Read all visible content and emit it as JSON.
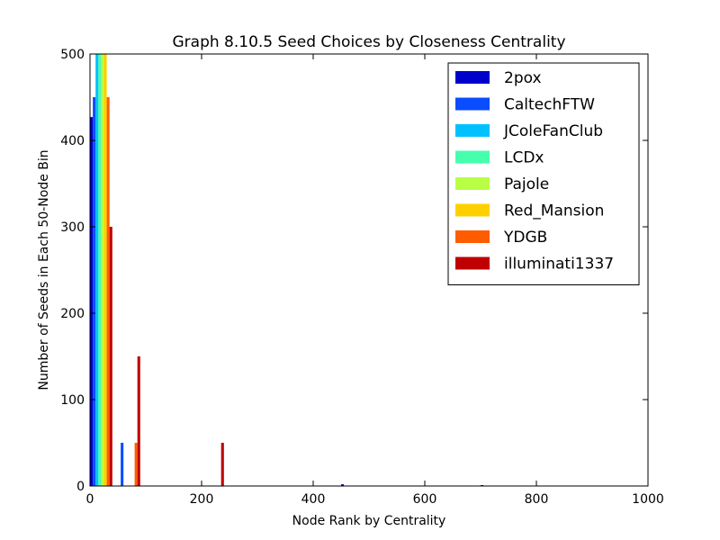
{
  "chart_data": {
    "type": "bar",
    "title": "Graph 8.10.5 Seed Choices by Closeness Centrality",
    "xlabel": "Node Rank by Centrality",
    "ylabel": "Number of Seeds in Each 50-Node Bin",
    "xlim": [
      0,
      1000
    ],
    "ylim": [
      0,
      500
    ],
    "xticks": [
      0,
      200,
      400,
      600,
      800,
      1000
    ],
    "yticks": [
      0,
      100,
      200,
      300,
      400,
      500
    ],
    "grid": false,
    "legend_position": "top-right",
    "bin_width": 50,
    "bins": [
      0,
      50,
      100,
      150,
      200,
      250,
      300,
      350,
      400,
      450,
      500,
      550,
      600,
      650,
      700,
      750,
      800,
      850,
      900,
      950
    ],
    "series": [
      {
        "name": "2pox",
        "color": "#0000cd",
        "values": [
          427,
          0,
          0,
          0,
          0,
          0,
          0,
          0,
          0,
          2,
          0,
          0,
          0,
          0,
          1,
          0,
          0,
          0,
          0,
          0
        ]
      },
      {
        "name": "CaltechFTW",
        "color": "#0a4cff",
        "values": [
          450,
          50,
          0,
          0,
          0,
          0,
          0,
          0,
          0,
          0,
          0,
          0,
          0,
          0,
          0,
          0,
          0,
          0,
          0,
          0
        ]
      },
      {
        "name": "JColeFanClub",
        "color": "#00c1ff",
        "values": [
          500,
          0,
          0,
          0,
          0,
          0,
          0,
          0,
          0,
          0,
          0,
          0,
          0,
          0,
          0,
          0,
          0,
          0,
          0,
          0
        ]
      },
      {
        "name": "LCDx",
        "color": "#46ffad",
        "values": [
          500,
          0,
          0,
          0,
          0,
          0,
          0,
          0,
          0,
          0,
          0,
          0,
          0,
          0,
          0,
          0,
          0,
          0,
          0,
          0
        ]
      },
      {
        "name": "Pajole",
        "color": "#b9ff46",
        "values": [
          500,
          0,
          0,
          0,
          0,
          0,
          0,
          0,
          0,
          0,
          0,
          0,
          0,
          0,
          0,
          0,
          0,
          0,
          0,
          0
        ]
      },
      {
        "name": "Red_Mansion",
        "color": "#ffd000",
        "values": [
          500,
          0,
          0,
          0,
          0,
          0,
          0,
          0,
          0,
          0,
          0,
          0,
          0,
          0,
          0,
          0,
          0,
          0,
          0,
          0
        ]
      },
      {
        "name": "YDGB",
        "color": "#ff5c00",
        "values": [
          450,
          50,
          0,
          0,
          0,
          0,
          0,
          0,
          0,
          0,
          0,
          0,
          0,
          0,
          0,
          0,
          0,
          0,
          0,
          0
        ]
      },
      {
        "name": "illuminati1337",
        "color": "#c00000",
        "values": [
          300,
          150,
          0,
          0,
          50,
          0,
          0,
          0,
          0,
          0,
          0,
          0,
          0,
          0,
          0,
          0,
          0,
          0,
          0,
          0
        ]
      }
    ]
  }
}
